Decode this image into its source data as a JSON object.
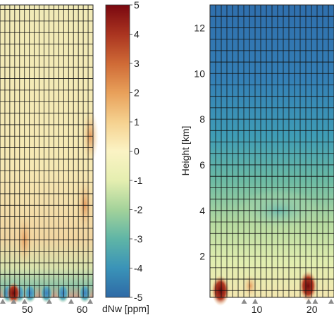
{
  "chart_data": [
    {
      "type": "heatmap",
      "panel": "left",
      "xlabel": "",
      "ylabel": "",
      "x_ticks": [
        50,
        60
      ],
      "xlim": [
        45,
        62
      ],
      "ylim": [
        0.5,
        13.2
      ],
      "grid": true,
      "markers_x": [
        45.5,
        47.5,
        49.5,
        54,
        58,
        62
      ],
      "features": [
        {
          "kind": "negative_blob",
          "x": 46.5,
          "y": 0.5,
          "value": -4.5
        },
        {
          "kind": "negative_blob",
          "x": 48.5,
          "y": 0.5,
          "value": -4.5
        },
        {
          "kind": "negative_blob",
          "x": 50.5,
          "y": 0.5,
          "value": -4.0
        },
        {
          "kind": "negative_blob",
          "x": 53.5,
          "y": 0.5,
          "value": -4.0
        },
        {
          "kind": "negative_blob",
          "x": 56.5,
          "y": 0.5,
          "value": -3.5
        },
        {
          "kind": "negative_blob",
          "x": 60.5,
          "y": 0.5,
          "value": -3.5
        },
        {
          "kind": "positive_blob",
          "x": 47.5,
          "y": 0.2,
          "value": 4.0
        },
        {
          "kind": "positive_band",
          "x": 49.5,
          "y": 3.0,
          "value": 1.5
        },
        {
          "kind": "positive_band",
          "x": 60.5,
          "y": 4.5,
          "value": 1.5
        },
        {
          "kind": "positive_band",
          "x": 61.5,
          "y": 7.5,
          "value": 1.5
        }
      ]
    },
    {
      "type": "heatmap",
      "panel": "right",
      "xlabel": "",
      "ylabel": "Height [km]",
      "x_ticks": [
        10,
        20
      ],
      "y_ticks": [
        2,
        4,
        6,
        8,
        10,
        12
      ],
      "xlim": [
        1.5,
        24
      ],
      "ylim": [
        0.2,
        13
      ],
      "grid": true,
      "markers_x": [
        7.7,
        9.7,
        19.4,
        20.6,
        24
      ],
      "features": [
        {
          "kind": "positive_blob",
          "x": 3.4,
          "y": 0.5,
          "value": 4.5
        },
        {
          "kind": "positive_blob",
          "x": 8.8,
          "y": 0.7,
          "value": 3.5
        },
        {
          "kind": "positive_blob",
          "x": 19.3,
          "y": 0.7,
          "value": 5.0
        },
        {
          "kind": "negative_band",
          "x": 14,
          "y": 4.0,
          "value": -2.0
        }
      ]
    }
  ],
  "colorbar": {
    "label": "dNw [ppm]",
    "ticks": [
      5,
      4,
      3,
      2,
      1,
      0,
      -1,
      -2,
      -3,
      -4,
      -5
    ],
    "range": [
      -5,
      5
    ],
    "colors": [
      "#2e6aa6",
      "#3a93b8",
      "#5fb5a6",
      "#a3d29a",
      "#e5eeb0",
      "#fbf3c4",
      "#f5d18f",
      "#e8a05a",
      "#cf6a36",
      "#aa3420",
      "#7a0810"
    ]
  }
}
